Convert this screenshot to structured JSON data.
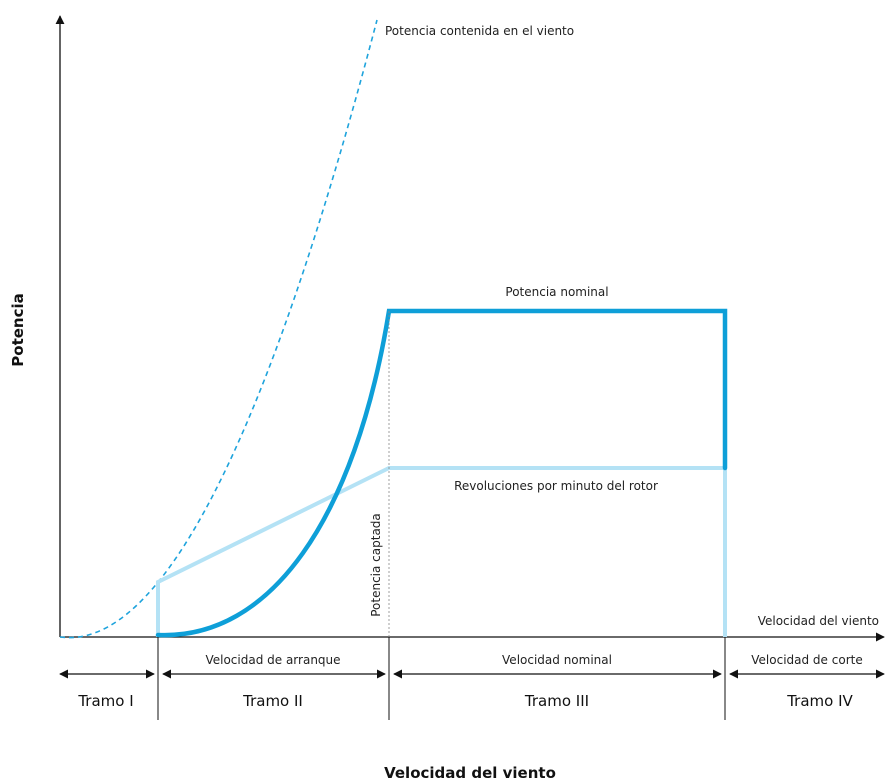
{
  "labels": {
    "y_axis": "Potencia",
    "x_axis": "Velocidad del viento",
    "x_axis_end": "Velocidad del viento",
    "wind_power": "Potencia contenida en el viento",
    "nominal_power": "Potencia nominal",
    "rotor_rpm": "Revoluciones por minuto del rotor",
    "captured_power": "Potencia captada"
  },
  "speeds": {
    "start": "Velocidad de arranque",
    "nominal": "Velocidad nominal",
    "cutoff": "Velocidad de corte"
  },
  "sections": [
    "Tramo I",
    "Tramo II",
    "Tramo III",
    "Tramo IV"
  ],
  "colors": {
    "power_curve": "#0e9fd8",
    "rpm_curve": "#b4e2f5",
    "wind_curve": "#1ea3dc",
    "axis": "#111111"
  }
}
